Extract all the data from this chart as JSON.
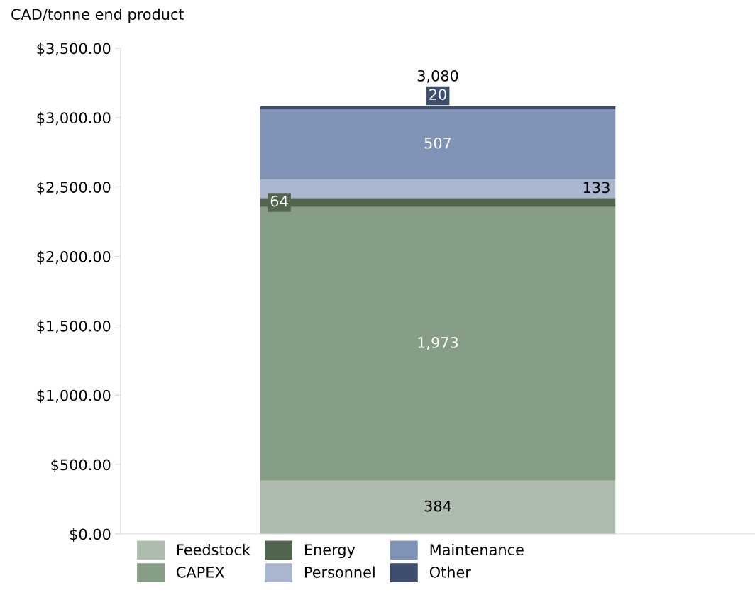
{
  "chart_data": {
    "type": "bar",
    "stacked": true,
    "ylabel": "CAD/tonne end product",
    "categories": [
      null
    ],
    "series": [
      {
        "name": "Feedstock",
        "color": "#adbcae",
        "values": [
          384
        ],
        "value_labels": [
          "384"
        ]
      },
      {
        "name": "CAPEX",
        "color": "#869e85",
        "values": [
          1973
        ],
        "value_labels": [
          "1,973"
        ]
      },
      {
        "name": "Energy",
        "color": "#52654f",
        "values": [
          64
        ],
        "value_labels": [
          "64"
        ]
      },
      {
        "name": "Personnel",
        "color": "#aab5cf",
        "values": [
          133
        ],
        "value_labels": [
          "133"
        ]
      },
      {
        "name": "Maintenance",
        "color": "#8092b6",
        "values": [
          507
        ],
        "value_labels": [
          "507"
        ]
      },
      {
        "name": "Other",
        "color": "#3e4e6e",
        "values": [
          20
        ],
        "value_labels": [
          "20"
        ]
      }
    ],
    "totals": [
      "3,080"
    ],
    "ylim": [
      0,
      3500
    ],
    "yticks": [
      {
        "value": 0,
        "label": "$0.00"
      },
      {
        "value": 500,
        "label": "$500.00"
      },
      {
        "value": 1000,
        "label": "$1,000.00"
      },
      {
        "value": 1500,
        "label": "$1,500.00"
      },
      {
        "value": 2000,
        "label": "$2,000.00"
      },
      {
        "value": 2500,
        "label": "$2,500.00"
      },
      {
        "value": 3000,
        "label": "$3,000.00"
      },
      {
        "value": 3500,
        "label": "$3,500.00"
      }
    ],
    "grid": false,
    "legend": "bottom"
  }
}
